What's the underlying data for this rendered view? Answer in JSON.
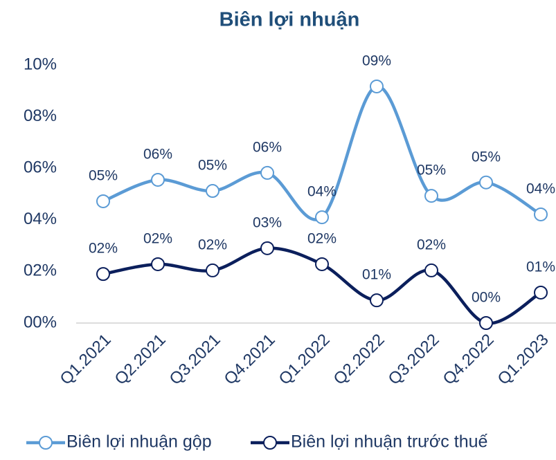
{
  "chart_data": {
    "type": "line",
    "title": "Biên lợi nhuận",
    "categories": [
      "Q1.2021",
      "Q2.2021",
      "Q3.2021",
      "Q4.2021",
      "Q1.2022",
      "Q2.2022",
      "Q3.2022",
      "Q4.2022",
      "Q1.2023"
    ],
    "series": [
      {
        "name": "Biên lợi nhuận gộp",
        "color": "#5b9bd5",
        "values": [
          4.72,
          5.55,
          5.12,
          5.82,
          4.1,
          9.17,
          4.93,
          5.45,
          4.21
        ],
        "value_labels": [
          "05%",
          "06%",
          "05%",
          "06%",
          "04%",
          "09%",
          "05%",
          "05%",
          "04%"
        ]
      },
      {
        "name": "Biên lợi nhuận trước thuế",
        "color": "#0b1f5c",
        "values": [
          1.9,
          2.28,
          2.04,
          2.9,
          2.28,
          0.88,
          2.04,
          0.0,
          1.18
        ],
        "value_labels": [
          "02%",
          "02%",
          "02%",
          "03%",
          "02%",
          "01%",
          "02%",
          "00%",
          "01%"
        ]
      }
    ],
    "ylim": [
      0,
      10
    ],
    "yticks": [
      {
        "value": 0,
        "label": "00%"
      },
      {
        "value": 2,
        "label": "02%"
      },
      {
        "value": 4,
        "label": "04%"
      },
      {
        "value": 6,
        "label": "06%"
      },
      {
        "value": 8,
        "label": "08%"
      },
      {
        "value": 10,
        "label": "10%"
      }
    ],
    "grid": false,
    "legend": "bottom"
  }
}
